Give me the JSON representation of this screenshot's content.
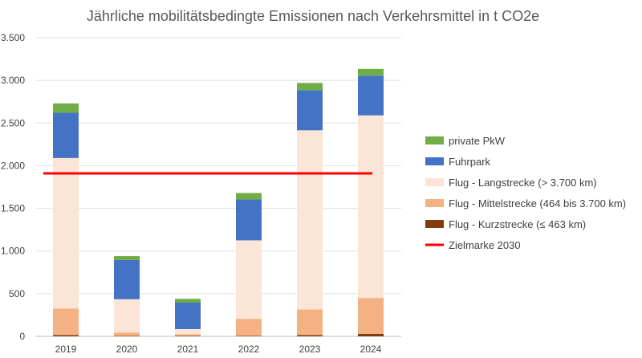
{
  "chart_data": {
    "type": "bar",
    "stacked": true,
    "title": "Jährliche mobilitätsbedingte Emissionen nach Verkehrsmittel in t CO2e",
    "xlabel": "",
    "ylabel": "",
    "categories": [
      "2019",
      "2020",
      "2021",
      "2022",
      "2023",
      "2024"
    ],
    "ylim": [
      0,
      3500
    ],
    "yticks": [
      0,
      500,
      1000,
      1500,
      2000,
      2500,
      3000,
      3500
    ],
    "ytick_labels": [
      "0",
      "500",
      "1.000",
      "1.500",
      "2.000",
      "2.500",
      "3.000",
      "3.500"
    ],
    "grid": true,
    "legend_position": "right",
    "series": [
      {
        "name": "Flug - Kurzstrecke (≤ 463 km)",
        "color": "#843c0c",
        "values": [
          15,
          5,
          5,
          5,
          15,
          30
        ]
      },
      {
        "name": "Flug - Mittelstrecke (464 bis 3.700 km)",
        "color": "#f4b183",
        "values": [
          310,
          40,
          20,
          200,
          300,
          420
        ]
      },
      {
        "name": "Flug - Langstrecke (> 3.700 km)",
        "color": "#fbe5d6",
        "values": [
          1765,
          390,
          60,
          920,
          2100,
          2140
        ]
      },
      {
        "name": "Fuhrpark",
        "color": "#4472c4",
        "values": [
          530,
          460,
          310,
          480,
          470,
          465
        ]
      },
      {
        "name": "private PkW",
        "color": "#70ad47",
        "values": [
          110,
          45,
          45,
          75,
          85,
          80
        ]
      }
    ],
    "target_line": {
      "name": "Zielmarke 2030",
      "value": 1910,
      "color": "#ff0000"
    },
    "legend_order": [
      "private PkW",
      "Fuhrpark",
      "Flug - Langstrecke (> 3.700 km)",
      "Flug - Mittelstrecke (464 bis 3.700 km)",
      "Flug - Kurzstrecke (≤ 463 km)",
      "Zielmarke 2030"
    ]
  }
}
